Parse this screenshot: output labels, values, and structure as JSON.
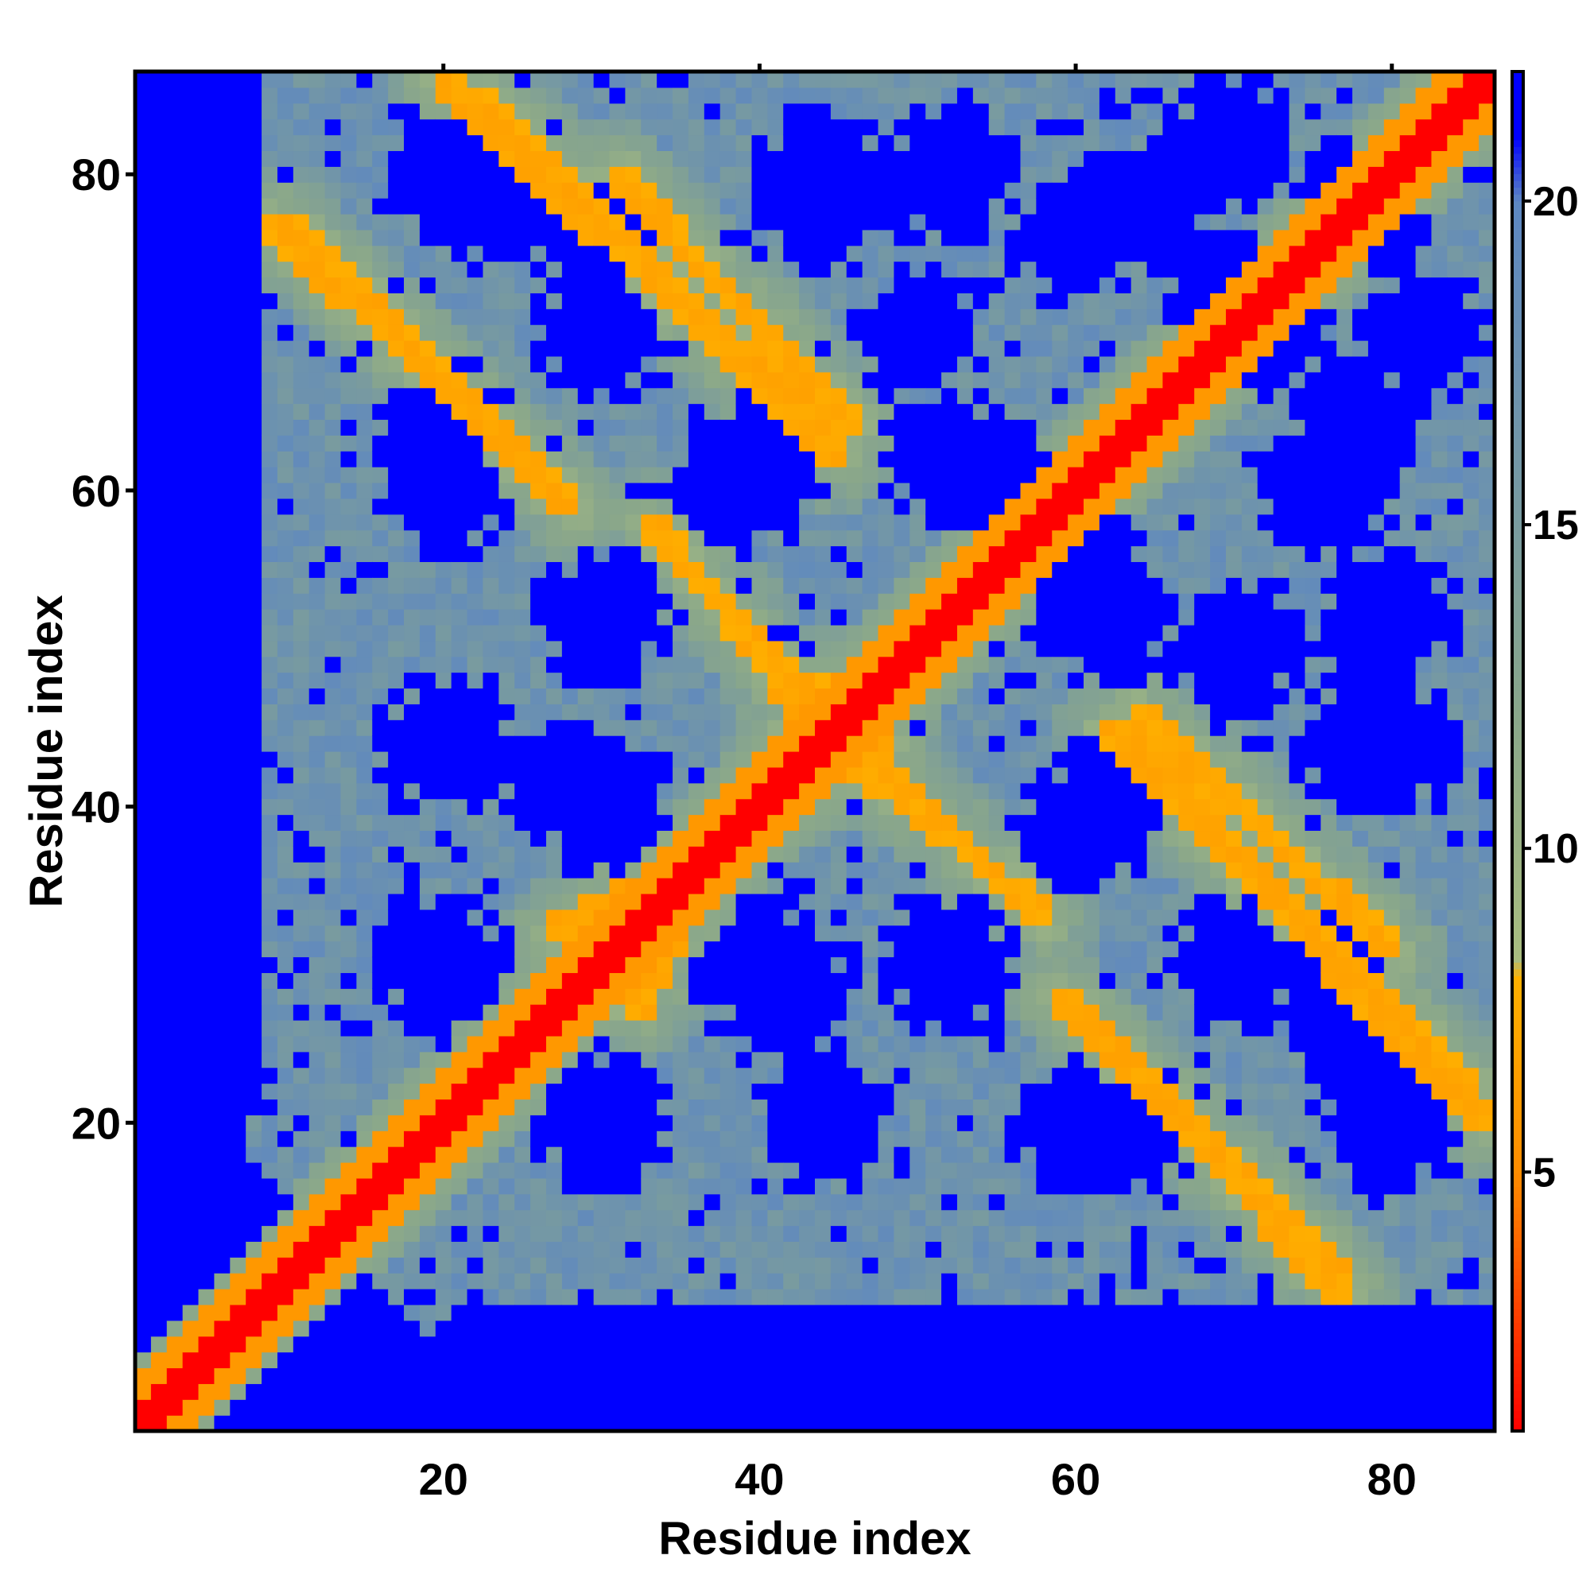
{
  "chart_data": {
    "type": "heatmap",
    "title": "",
    "xlabel": "Residue index",
    "ylabel": "Residue index",
    "n": 86,
    "xlim": [
      1,
      86
    ],
    "ylim": [
      1,
      86
    ],
    "x_ticks": [
      20,
      40,
      60,
      80
    ],
    "y_ticks": [
      20,
      40,
      60,
      80
    ],
    "colorbar": {
      "min": 1,
      "max": 22,
      "ticks": [
        5,
        10,
        15,
        20
      ],
      "stops": [
        {
          "value": 1,
          "color": "#ff0000"
        },
        {
          "value": 5,
          "color": "#ff8c00"
        },
        {
          "value": 8,
          "color": "#ffb000"
        },
        {
          "value": 8.3,
          "color": "#a9bd80"
        },
        {
          "value": 12,
          "color": "#8aa78a"
        },
        {
          "value": 20,
          "color": "#5d87c2"
        },
        {
          "value": 21,
          "color": "#0000ff"
        }
      ],
      "cap_value": 21,
      "cap_color": "#0000ff"
    },
    "description": "Symmetric residue-residue distance map (diagonal ~1, off-diagonal bands of close contacts ~5-8, background capped at 21+)",
    "bands": [
      {
        "from": [
          1,
          1
        ],
        "to": [
          86,
          86
        ],
        "value": 1
      },
      {
        "from": [
          9,
          77
        ],
        "to": [
          28,
          59
        ],
        "value": 7
      },
      {
        "from": [
          20,
          86
        ],
        "to": [
          45,
          62
        ],
        "value": 7
      },
      {
        "from": [
          27,
          32
        ],
        "to": [
          48,
          44
        ],
        "value": 7
      },
      {
        "from": [
          31,
          80
        ],
        "to": [
          46,
          64
        ],
        "value": 7
      },
      {
        "from": [
          41,
          48
        ],
        "to": [
          58,
          33
        ],
        "value": 7
      },
      {
        "from": [
          59,
          28
        ],
        "to": [
          77,
          10
        ],
        "value": 7
      },
      {
        "from": [
          63,
          45
        ],
        "to": [
          85,
          22
        ],
        "value": 7
      },
      {
        "from": [
          76,
          30
        ],
        "to": [
          86,
          20
        ],
        "value": 7
      }
    ],
    "low_density_holes": [
      [
        24,
        78
      ],
      [
        44,
        78
      ],
      [
        64,
        78
      ],
      [
        78,
        78
      ],
      [
        30,
        70
      ],
      [
        50,
        70
      ],
      [
        72,
        70
      ],
      [
        82,
        70
      ],
      [
        20,
        60
      ],
      [
        38,
        60
      ],
      [
        56,
        60
      ],
      [
        76,
        60
      ],
      [
        30,
        52
      ],
      [
        62,
        52
      ],
      [
        80,
        52
      ],
      [
        28,
        42
      ],
      [
        64,
        42
      ],
      [
        80,
        44
      ],
      [
        20,
        30
      ],
      [
        40,
        30
      ],
      [
        52,
        30
      ],
      [
        76,
        30
      ],
      [
        30,
        20
      ],
      [
        44,
        20
      ],
      [
        64,
        20
      ],
      [
        80,
        20
      ]
    ]
  }
}
